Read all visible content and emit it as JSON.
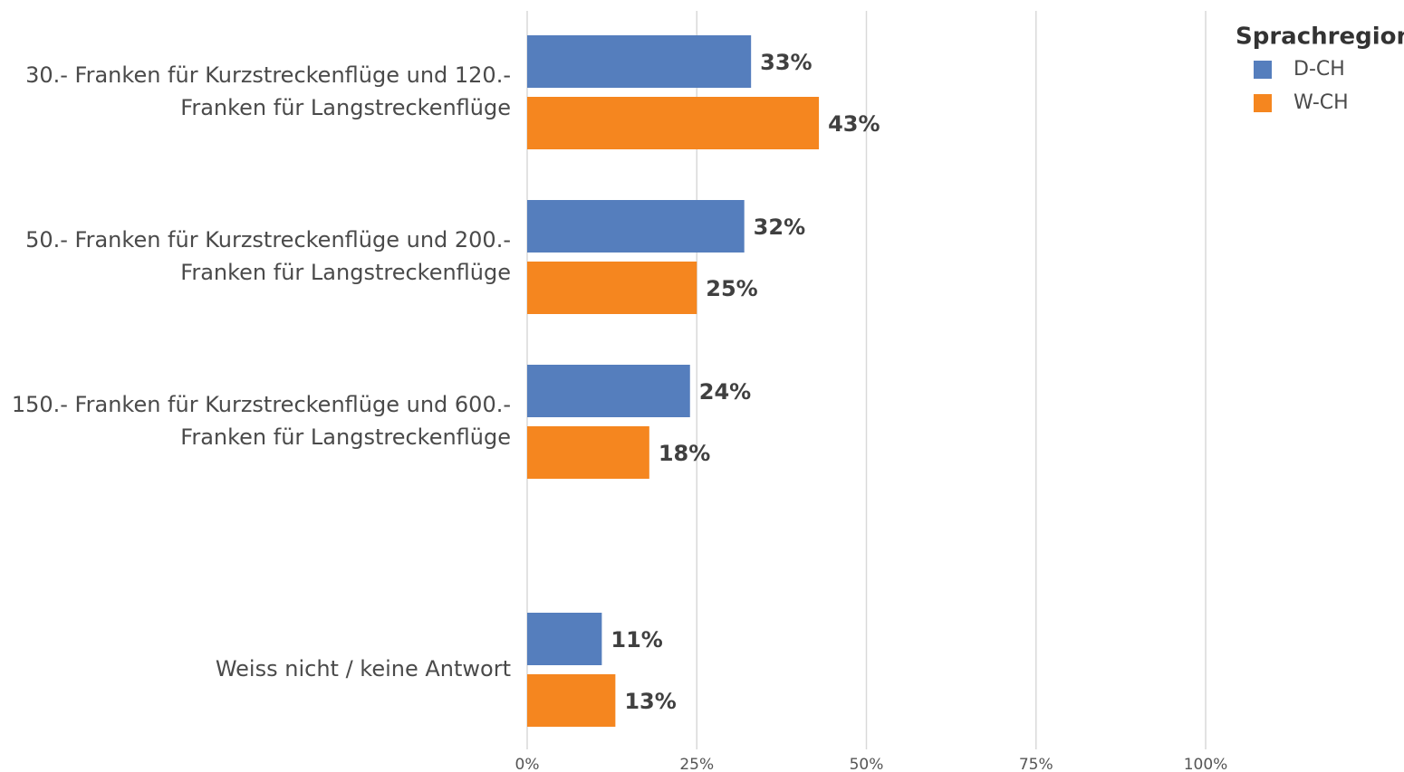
{
  "chart_data": {
    "type": "bar",
    "orientation": "horizontal",
    "categories": [
      [
        "30.- Franken für Kurzstreckenflüge und 120.-",
        "Franken für Langstreckenflüge"
      ],
      [
        "50.- Franken für Kurzstreckenflüge und 200.-",
        "Franken für Langstreckenflüge"
      ],
      [
        "150.- Franken für Kurzstreckenflüge und 600.-",
        "Franken für Langstreckenflüge"
      ],
      [
        "Weiss nicht / keine Antwort"
      ]
    ],
    "series": [
      {
        "name": "D-CH",
        "color": "#557ebd",
        "values": [
          33,
          32,
          24,
          11
        ],
        "value_labels": [
          "33%",
          "32%",
          "24%",
          "11%"
        ]
      },
      {
        "name": "W-CH",
        "color": "#f5861f",
        "values": [
          43,
          25,
          18,
          13
        ],
        "value_labels": [
          "43%",
          "25%",
          "18%",
          "13%"
        ]
      }
    ],
    "xlim": [
      0,
      100
    ],
    "xticks": [
      {
        "value": 0,
        "label": "0%"
      },
      {
        "value": 25,
        "label": "25%"
      },
      {
        "value": 50,
        "label": "50%"
      },
      {
        "value": 75,
        "label": "75%"
      },
      {
        "value": 100,
        "label": "100%"
      }
    ],
    "grid": true,
    "legend_title": "Sprachregion",
    "legend_position": "top-right"
  }
}
